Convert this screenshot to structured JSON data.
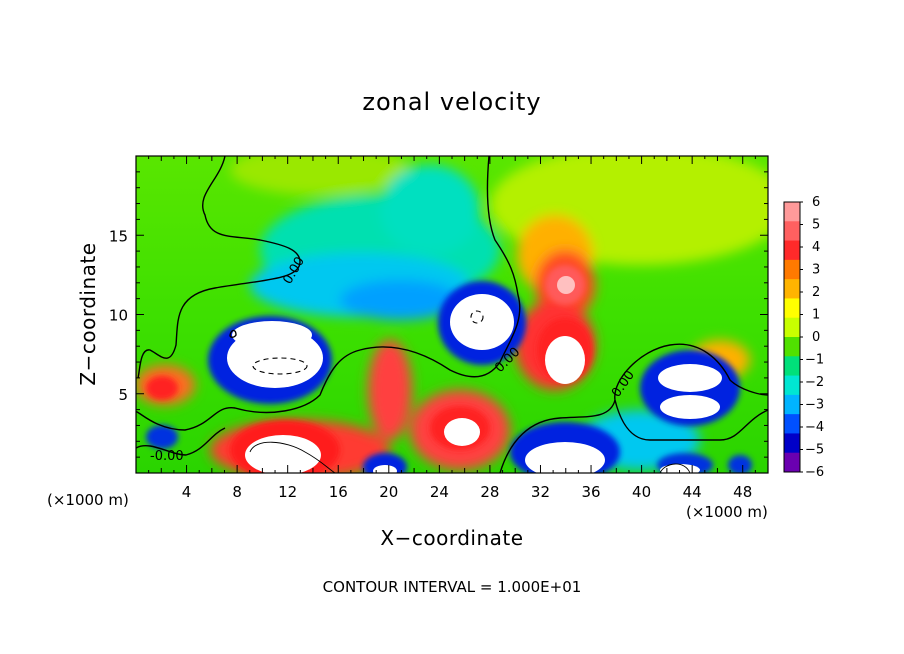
{
  "chart_data": {
    "type": "heatmap",
    "title": "zonal velocity",
    "xlabel": "X−coordinate",
    "ylabel": "Z−coordinate",
    "x_unit_label": "(×1000 m)",
    "footnote": "CONTOUR INTERVAL = 1.000E+01",
    "xlim": [
      0,
      50
    ],
    "ylim": [
      0,
      20
    ],
    "xticks": [
      4,
      8,
      12,
      16,
      20,
      24,
      28,
      32,
      36,
      40,
      44,
      48
    ],
    "yticks": [
      5,
      10,
      15
    ],
    "colorbar": {
      "ticks": [
        6,
        5,
        4,
        3,
        2,
        1,
        0,
        -1,
        -2,
        -3,
        -4,
        -5,
        -6
      ],
      "colors": [
        "#ff9a9a",
        "#ff6060",
        "#ff2a2a",
        "#ff7a00",
        "#ffb400",
        "#ffff00",
        "#c8ff00",
        "#50e100",
        "#00e07a",
        "#00e6d2",
        "#00b4ff",
        "#0050ff",
        "#0000c8",
        "#6a00b0"
      ]
    },
    "contour_labels": [
      "0.00",
      "0.00",
      "0.00",
      "-0.00"
    ],
    "colors": {
      "background": "#3ee600",
      "positive_core": "#ffffff",
      "negative_core": "#ffffff"
    }
  }
}
